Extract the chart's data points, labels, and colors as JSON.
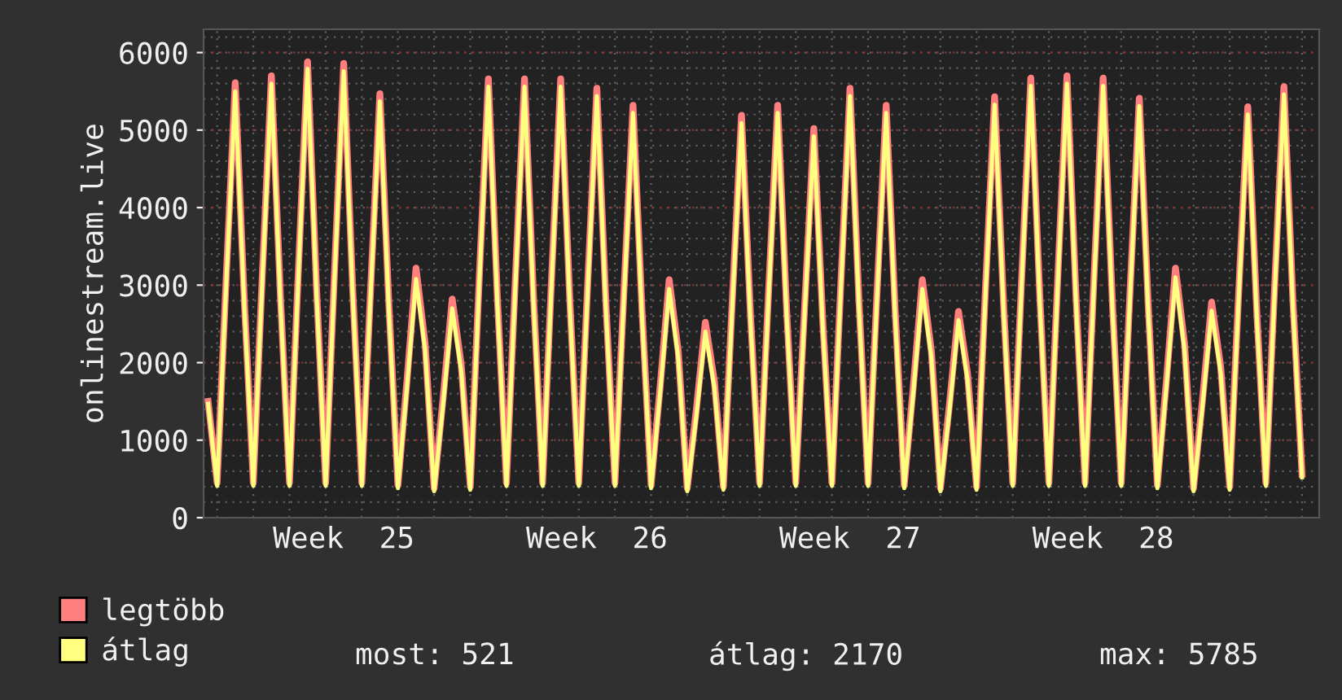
{
  "chart_data": {
    "type": "line",
    "ylabel": "onlinestream.live",
    "categories": [
      null,
      null,
      null,
      null,
      null,
      null,
      null,
      null,
      null,
      null,
      null,
      null,
      null,
      null,
      null,
      "Week  25",
      null,
      null,
      null,
      null,
      null,
      null,
      null,
      null,
      null,
      null,
      null,
      null,
      null,
      null,
      null,
      null,
      null,
      null,
      null,
      null,
      null,
      null,
      null,
      null,
      null,
      null,
      null,
      "Week  26",
      null,
      null,
      null,
      null,
      null,
      null,
      null,
      null,
      null,
      null,
      null,
      null,
      null,
      null,
      null,
      null,
      null,
      null,
      null,
      null,
      null,
      null,
      null,
      null,
      null,
      null,
      null,
      "Week  27",
      null,
      null,
      null,
      null,
      null,
      null,
      null,
      null,
      null,
      null,
      null,
      null,
      null,
      null,
      null,
      null,
      null,
      null,
      null,
      null,
      null,
      null,
      null,
      null,
      null,
      null,
      null,
      "Week  28",
      null,
      null,
      null,
      null,
      null,
      null,
      null,
      null,
      null,
      null,
      null,
      null,
      null,
      null,
      null,
      null,
      null,
      null,
      null,
      null,
      null,
      null
    ],
    "series": [
      {
        "name": "legtöbb",
        "color": "#ff7f7f",
        "values": [
          1500,
          450,
          3090,
          5610,
          2810,
          450,
          3140,
          5700,
          2850,
          450,
          3230,
          5880,
          2940,
          450,
          3220,
          5860,
          2930,
          450,
          3010,
          5470,
          2740,
          420,
          1770,
          3220,
          2250,
          380,
          1550,
          2820,
          1970,
          400,
          3110,
          5660,
          2830,
          450,
          3110,
          5660,
          2830,
          450,
          3110,
          5660,
          2830,
          450,
          3050,
          5540,
          2770,
          450,
          2930,
          5320,
          2660,
          420,
          1690,
          3070,
          2150,
          380,
          1390,
          2520,
          1760,
          400,
          2850,
          5190,
          2600,
          450,
          2930,
          5320,
          2660,
          450,
          2760,
          5020,
          2510,
          450,
          3050,
          5540,
          2770,
          450,
          2930,
          5320,
          2660,
          420,
          1690,
          3070,
          2150,
          380,
          1460,
          2660,
          1860,
          400,
          2990,
          5430,
          2720,
          450,
          3120,
          5670,
          2840,
          450,
          3140,
          5700,
          2850,
          450,
          3120,
          5670,
          2840,
          450,
          2980,
          5410,
          2710,
          420,
          1770,
          3220,
          2250,
          380,
          1530,
          2780,
          1950,
          400,
          2920,
          5300,
          2650,
          450,
          3060,
          5560,
          2780,
          560
        ]
      },
      {
        "name": "átlag",
        "color": "#ffff80",
        "values": [
          1470,
          410,
          3010,
          5500,
          2730,
          410,
          3060,
          5600,
          2770,
          410,
          3150,
          5790,
          2860,
          410,
          3140,
          5760,
          2850,
          410,
          2930,
          5370,
          2660,
          380,
          1690,
          3080,
          2170,
          340,
          1470,
          2700,
          1890,
          360,
          3030,
          5560,
          2750,
          410,
          3030,
          5560,
          2750,
          410,
          3030,
          5560,
          2750,
          410,
          2970,
          5440,
          2690,
          410,
          2850,
          5220,
          2580,
          380,
          1610,
          2950,
          2070,
          340,
          1310,
          2400,
          1680,
          360,
          2770,
          5090,
          2520,
          410,
          2850,
          5220,
          2580,
          410,
          2680,
          4920,
          2430,
          410,
          2970,
          5440,
          2690,
          410,
          2850,
          5220,
          2580,
          380,
          1610,
          2950,
          2070,
          340,
          1380,
          2550,
          1780,
          360,
          2910,
          5330,
          2640,
          410,
          3040,
          5570,
          2760,
          410,
          3060,
          5600,
          2770,
          410,
          3040,
          5570,
          2760,
          410,
          2900,
          5310,
          2630,
          380,
          1690,
          3100,
          2170,
          340,
          1450,
          2670,
          1870,
          360,
          2840,
          5200,
          2570,
          410,
          2980,
          5460,
          2700,
          520
        ]
      }
    ],
    "ylim": [
      0,
      6300
    ],
    "yticks": [
      0,
      1000,
      2000,
      3000,
      4000,
      5000,
      6000
    ],
    "grid": true,
    "legend": "bottom left",
    "annotations": [
      "most: 521",
      "átlag: 2170",
      "max: 5785"
    ]
  }
}
